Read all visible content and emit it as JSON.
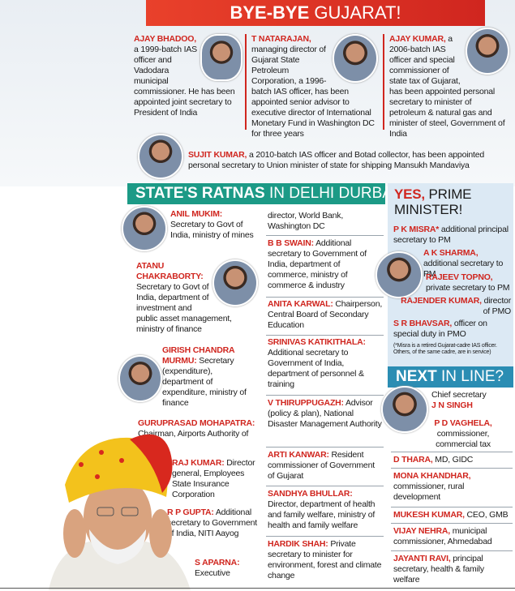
{
  "header": {
    "title_bold": "BYE-BYE",
    "title_light": "GUJARAT!"
  },
  "moved": [
    {
      "name": "AJAY BHADOO,",
      "text": "a 1999-batch IAS officer and Vadodara municipal commissioner. He has been appointed joint secretary to President of India"
    },
    {
      "name": "T NATARAJAN,",
      "text": "managing director of Gujarat State Petroleum Corporation, a 1996-batch IAS officer, has been appointed senior advisor to executive director of International Monetary Fund in Washington DC for three years"
    },
    {
      "name": "AJAY KUMAR,",
      "text": "a 2006-batch IAS officer and special commissioner of state tax of Gujarat, has been appointed personal secretary to minister of petroleum & natural gas and minister of steel, Government of India"
    },
    {
      "name": "SUJIT KUMAR,",
      "text": "a 2010-batch IAS officer and Botad collector, has been appointed personal secretary to Union minister of state for shipping Mansukh Mandaviya"
    }
  ],
  "ratnas": {
    "title_bold": "STATE'S RATNAS",
    "title_light": "IN DELHI DURBAR",
    "entries": [
      {
        "name": "ANIL MUKIM:",
        "text": "Secretary to Govt of India, ministry of mines"
      },
      {
        "name": "ATANU CHAKRABORTY:",
        "text": "Secretary to Govt of India, department of investment and public asset management, ministry of finance"
      },
      {
        "name": "GIRISH CHANDRA MURMU:",
        "text": "Secretary (expenditure), department of expenditure, ministry of finance"
      },
      {
        "name": "GURUPRASAD MOHAPATRA:",
        "text": "Chairman, Airports Authority of India"
      },
      {
        "name": "RAJ KUMAR:",
        "text": "Director general, Employees State Insurance Corporation"
      },
      {
        "name": "R P GUPTA:",
        "text": "Additional secretary to Government of India, NITI Aayog"
      },
      {
        "name": "S APARNA:",
        "text": "Executive",
        "text_continued": "director, World Bank, Washington DC"
      },
      {
        "name": "B B SWAIN:",
        "text": "Additional secretary to Government of India, department of commerce, ministry of commerce & industry"
      },
      {
        "name": "ANITA KARWAL:",
        "text": "Chairperson, Central Board of Secondary Education"
      },
      {
        "name": "SRINIVAS KATIKITHALA:",
        "text": "Additional secretary to Government of India, department of personnel & training"
      },
      {
        "name": "V THIRUPPUGAZH:",
        "text": "Advisor (policy & plan), National Disaster Management Authority"
      },
      {
        "name": "ARTI KANWAR:",
        "text": "Resident commissioner of Government of Gujarat"
      },
      {
        "name": "SANDHYA BHULLAR:",
        "text": "Director, department of health and family welfare, ministry of health and family welfare"
      },
      {
        "name": "HARDIK SHAH:",
        "text": "Private secretary to minister for environment, forest and climate change"
      }
    ]
  },
  "pm": {
    "title_bold": "YES,",
    "title_light": "PRIME MINISTER!",
    "entries": [
      {
        "name": "P K MISRA*",
        "text": "additional principal secretary to PM"
      },
      {
        "name": "A K SHARMA,",
        "text": "additional secretary to PM"
      },
      {
        "name": "RAJEEV TOPNO,",
        "text": "private secretary to PM"
      },
      {
        "name": "RAJENDER KUMAR,",
        "text": "director of PMO"
      },
      {
        "name": "S R BHAVSAR,",
        "text": "officer on special duty in PMO"
      }
    ],
    "note": "(*Misra is a retired Gujarat-cadre IAS officer. Others, of the same cadre, are in service)"
  },
  "next_in_line": {
    "title_bold": "NEXT",
    "title_light": "IN LINE?",
    "entries": [
      {
        "name": "J N SINGH",
        "text": "Chief secretary"
      },
      {
        "name": "P D VAGHELA,",
        "text": "commissioner, commercial tax"
      },
      {
        "name": "D THARA,",
        "text": "MD, GIDC"
      },
      {
        "name": "MONA KHANDHAR,",
        "text": "commissioner, rural development"
      },
      {
        "name": "MUKESH KUMAR,",
        "text": "CEO, GMB"
      },
      {
        "name": "VIJAY NEHRA,",
        "text": "municipal commissioner, Ahmedabad"
      },
      {
        "name": "JAYANTI RAVI,",
        "text": "principal secretary, health & family welfare"
      }
    ]
  }
}
